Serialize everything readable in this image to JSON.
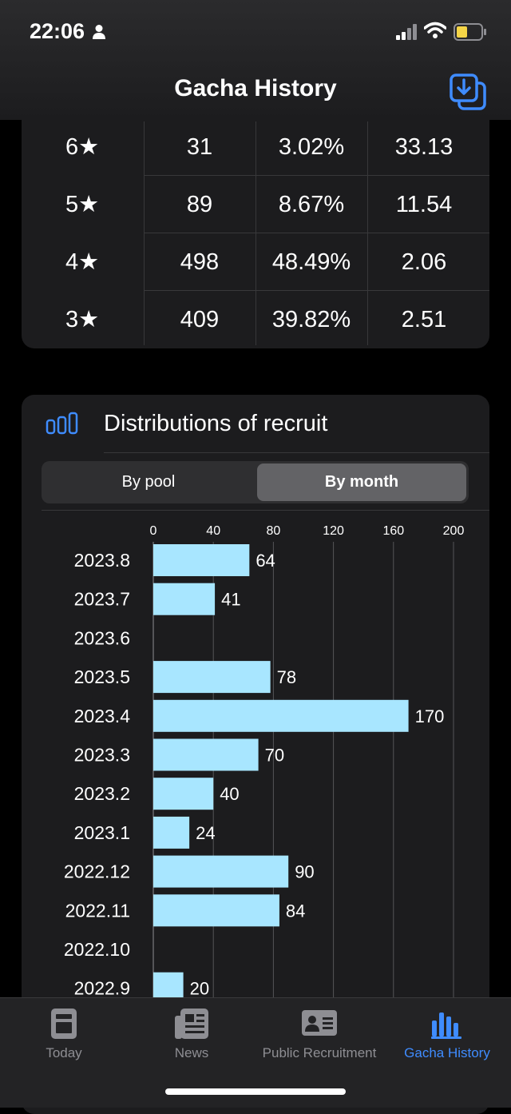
{
  "status": {
    "time": "22:06"
  },
  "nav": {
    "title": "Gacha History"
  },
  "rates": {
    "rows": [
      {
        "rarity": "6★",
        "count": "31",
        "percent": "3.02%",
        "avg": "33.13"
      },
      {
        "rarity": "5★",
        "count": "89",
        "percent": "8.67%",
        "avg": "11.54"
      },
      {
        "rarity": "4★",
        "count": "498",
        "percent": "48.49%",
        "avg": "2.06"
      },
      {
        "rarity": "3★",
        "count": "409",
        "percent": "39.82%",
        "avg": "2.51"
      }
    ]
  },
  "distribution": {
    "title": "Distributions of recruit",
    "segments": {
      "pool": "By pool",
      "month": "By month",
      "selected": "month"
    }
  },
  "chart_data": {
    "type": "bar",
    "orientation": "horizontal",
    "categories": [
      "2023.8",
      "2023.7",
      "2023.6",
      "2023.5",
      "2023.4",
      "2023.3",
      "2023.2",
      "2023.1",
      "2022.12",
      "2022.11",
      "2022.10",
      "2022.9"
    ],
    "values": [
      64,
      41,
      0,
      78,
      170,
      70,
      40,
      24,
      90,
      84,
      0,
      20
    ],
    "value_labels": [
      "64",
      "41",
      "",
      "78",
      "170",
      "70",
      "40",
      "24",
      "90",
      "84",
      "",
      "20"
    ],
    "xlim": [
      0,
      200
    ],
    "xticks": [
      "0",
      "40",
      "80",
      "120",
      "160",
      "200"
    ],
    "bar_color": "#a8e6ff",
    "grid": true
  },
  "tabbar": {
    "tabs": [
      {
        "label": "Today",
        "icon": "today-icon"
      },
      {
        "label": "News",
        "icon": "news-icon"
      },
      {
        "label": "Public Recruitment",
        "icon": "id-card-icon"
      },
      {
        "label": "Gacha History",
        "icon": "bar-chart-icon",
        "active": true
      }
    ]
  },
  "colors": {
    "accent": "#3f8cff",
    "card": "#1c1c1e",
    "bar": "#a8e6ff"
  }
}
